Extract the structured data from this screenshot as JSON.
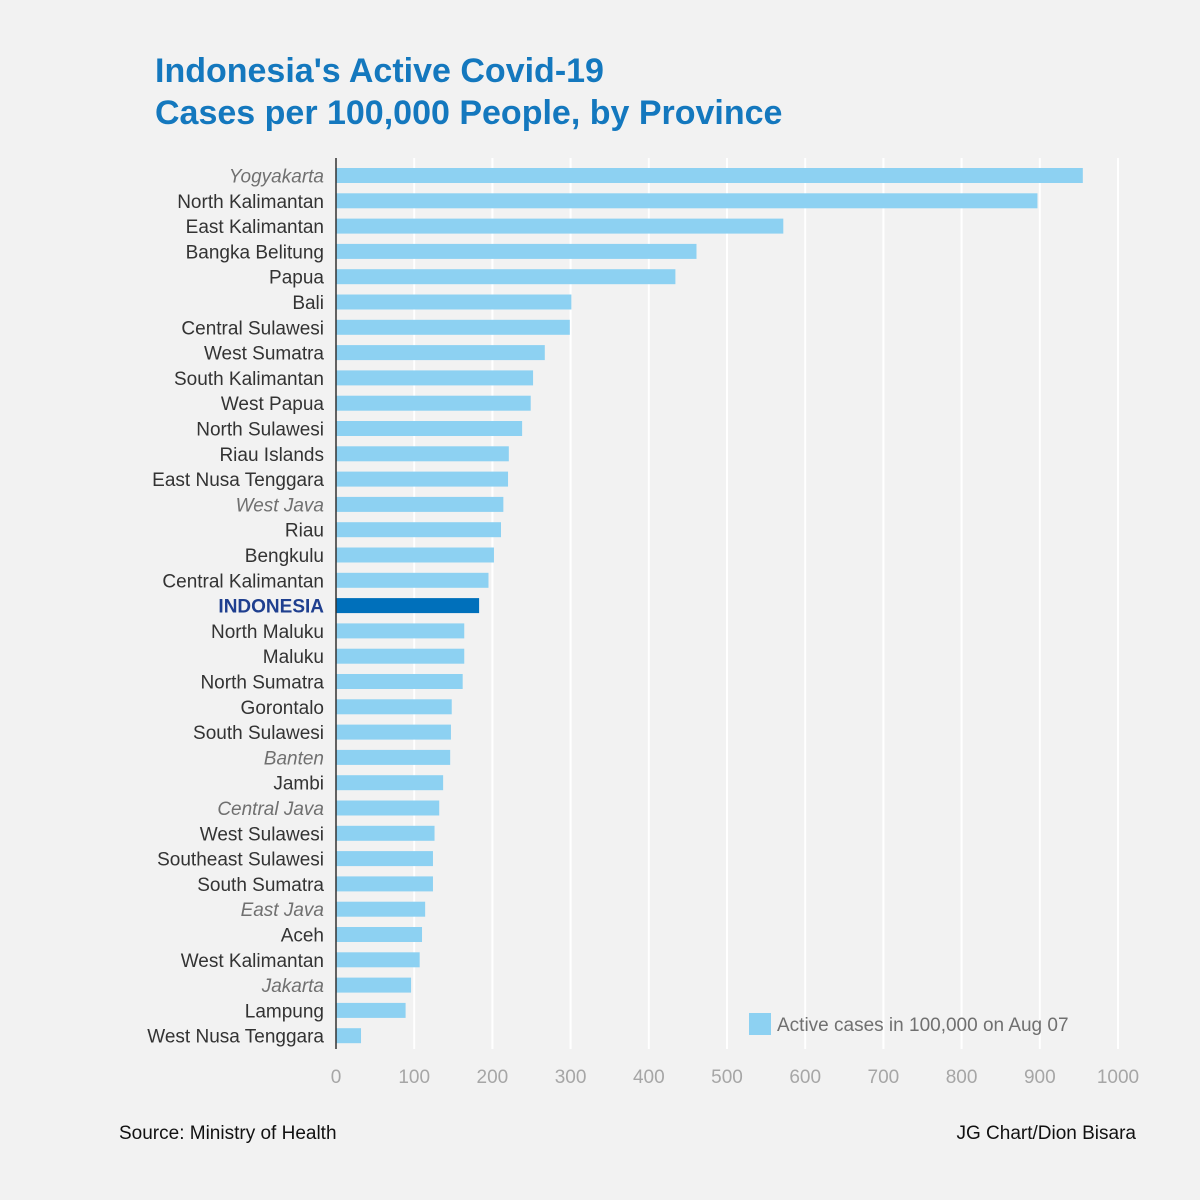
{
  "chart_data": {
    "type": "bar",
    "orientation": "horizontal",
    "title_lines": [
      "Indonesia's Active Covid-19",
      "Cases per 100,000 People, by Province"
    ],
    "categories": [
      "Yogyakarta",
      "North Kalimantan",
      "East Kalimantan",
      "Bangka Belitung",
      "Papua",
      "Bali",
      "Central Sulawesi",
      "West Sumatra",
      "South Kalimantan",
      "West Papua",
      "North Sulawesi",
      "Riau Islands",
      "East Nusa Tenggara",
      "West Java",
      "Riau",
      "Bengkulu",
      "Central Kalimantan",
      "INDONESIA",
      "North Maluku",
      "Maluku",
      "North Sumatra",
      "Gorontalo",
      "South Sulawesi",
      "Banten",
      "Jambi",
      "Central Java",
      "West Sulawesi",
      "Southeast Sulawesi",
      "South Sumatra",
      "East Java",
      "Aceh",
      "West Kalimantan",
      "Jakarta",
      "Lampung",
      "West Nusa Tenggara"
    ],
    "values": [
      955,
      897,
      572,
      461,
      434,
      301,
      299,
      267,
      252,
      249,
      238,
      221,
      220,
      214,
      211,
      202,
      195,
      183,
      164,
      164,
      162,
      148,
      147,
      146,
      137,
      132,
      126,
      124,
      124,
      114,
      110,
      107,
      96,
      89,
      32
    ],
    "italic_categories": [
      "Yogyakarta",
      "West Java",
      "Banten",
      "Central Java",
      "East Java",
      "Jakarta"
    ],
    "highlight_category": "INDONESIA",
    "series": [
      {
        "name": "Active cases in 100,000 on Aug 07"
      }
    ],
    "xlim": [
      0,
      1000
    ],
    "xticks": [
      "0",
      "100",
      "200",
      "300",
      "400",
      "500",
      "600",
      "700",
      "800",
      "900",
      "1000"
    ],
    "grid": "vertical",
    "legend_position": "bottom-right",
    "colors": {
      "bar": "#8dd1f2",
      "highlight_bar": "#0070bb",
      "title": "#1478be",
      "grid": "#ffffff",
      "axis": "#333333"
    }
  },
  "footer": {
    "source": "Source: Ministry of Health",
    "credit": "JG Chart/Dion Bisara"
  }
}
